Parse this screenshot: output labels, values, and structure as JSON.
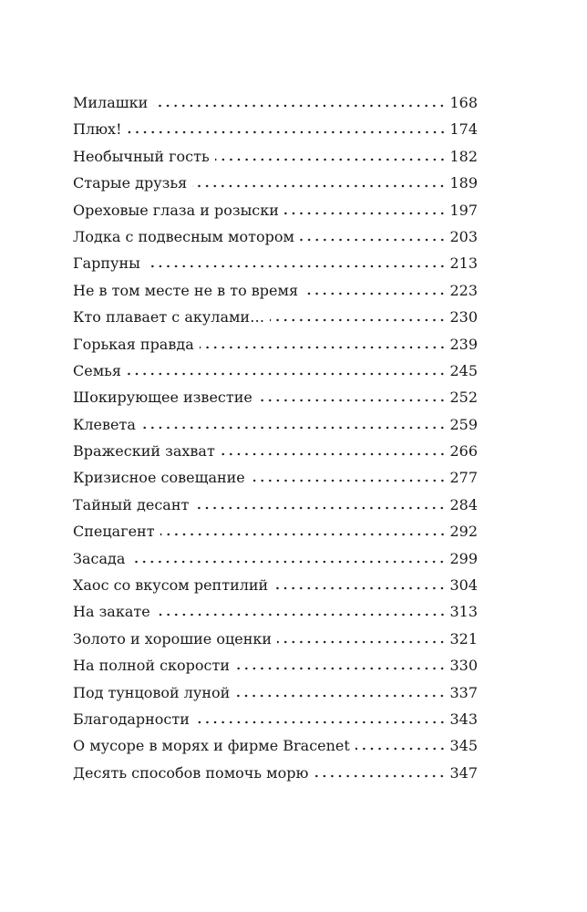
{
  "toc": [
    {
      "title": "Милашки",
      "page": "168"
    },
    {
      "title": "Плюх!",
      "page": "174"
    },
    {
      "title": "Необычный гость",
      "page": "182"
    },
    {
      "title": "Старые друзья",
      "page": "189"
    },
    {
      "title": "Ореховые глаза и розыски",
      "page": "197"
    },
    {
      "title": "Лодка с подвесным мотором",
      "page": "203"
    },
    {
      "title": "Гарпуны",
      "page": "213"
    },
    {
      "title": "Не в том месте не в то время",
      "page": "223"
    },
    {
      "title": "Кто плавает с акулами…",
      "page": "230"
    },
    {
      "title": "Горькая правда",
      "page": "239"
    },
    {
      "title": "Семья",
      "page": "245"
    },
    {
      "title": "Шокирующее известие",
      "page": "252"
    },
    {
      "title": "Клевета",
      "page": "259"
    },
    {
      "title": "Вражеский захват",
      "page": "266"
    },
    {
      "title": "Кризисное совещание",
      "page": "277"
    },
    {
      "title": "Тайный десант",
      "page": "284"
    },
    {
      "title": "Спецагент",
      "page": "292"
    },
    {
      "title": "Засада",
      "page": "299"
    },
    {
      "title": "Хаос со вкусом рептилий",
      "page": "304"
    },
    {
      "title": "На закате",
      "page": "313"
    },
    {
      "title": "Золото и хорошие оценки",
      "page": "321"
    },
    {
      "title": "На полной скорости",
      "page": "330"
    },
    {
      "title": "Под тунцовой луной",
      "page": "337"
    },
    {
      "title": "Благодарности",
      "page": "343"
    },
    {
      "title": "О мусоре в морях и фирме Bracenet",
      "page": "345"
    },
    {
      "title": "Десять способов помочь морю",
      "page": "347"
    }
  ]
}
